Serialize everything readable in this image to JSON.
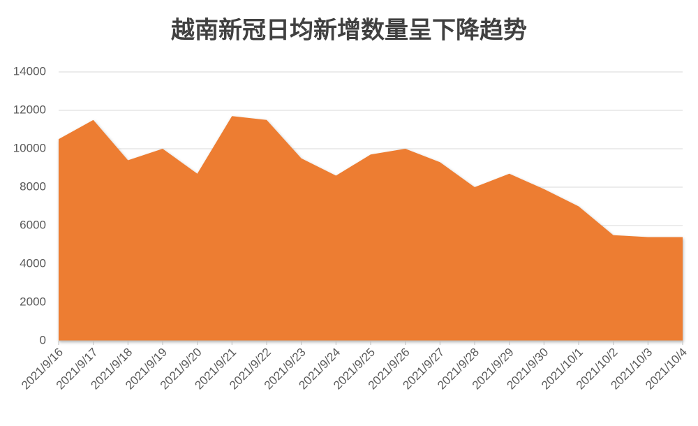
{
  "chart_data": {
    "type": "area",
    "title": "越南新冠日均新增数量呈下降趋势",
    "categories": [
      "2021/9/16",
      "2021/9/17",
      "2021/9/18",
      "2021/9/19",
      "2021/9/20",
      "2021/9/21",
      "2021/9/22",
      "2021/9/23",
      "2021/9/24",
      "2021/9/25",
      "2021/9/26",
      "2021/9/27",
      "2021/9/28",
      "2021/9/29",
      "2021/9/30",
      "2021/10/1",
      "2021/10/2",
      "2021/10/3",
      "2021/10/4"
    ],
    "values": [
      10500,
      11500,
      9400,
      10000,
      8700,
      11700,
      11500,
      9500,
      8600,
      9700,
      10000,
      9300,
      8000,
      8700,
      7900,
      7000,
      5500,
      5400,
      5400
    ],
    "color": "#ed7d31",
    "ylim": [
      0,
      14000
    ],
    "yticks": [
      0,
      2000,
      4000,
      6000,
      8000,
      10000,
      12000,
      14000
    ],
    "grid": true
  }
}
